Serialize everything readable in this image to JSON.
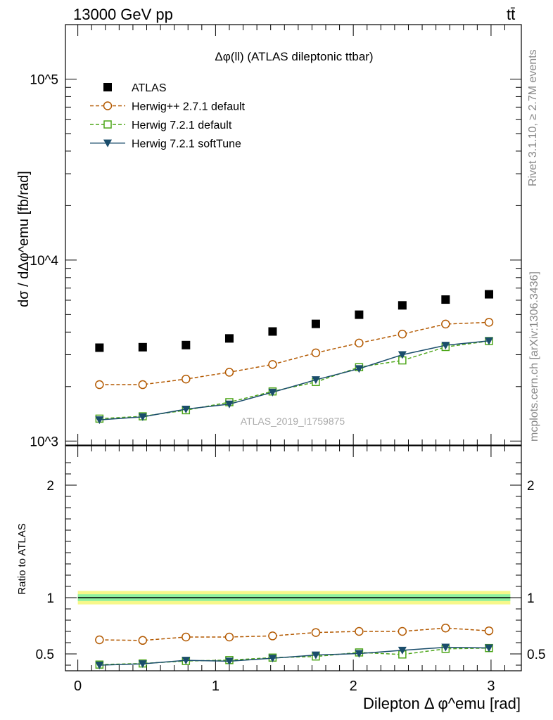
{
  "header": {
    "left": "13000 GeV pp",
    "right": "tt̄"
  },
  "side_labels": {
    "rivet": "Rivet 3.1.10, ≥ 2.7M events",
    "mcplots": "mcplots.cern.ch [arXiv:1306.3436]"
  },
  "chart_data": [
    {
      "type": "scatter",
      "panel": "main",
      "title": "Δφ(ll) (ATLAS dileptonic ttbar)",
      "ylabel": "dσ / dΔφ^emu [fb/rad]",
      "y_scale": "log",
      "ylim": [
        950,
        200000
      ],
      "xlim": [
        -0.09,
        3.22
      ],
      "x_ticks": [
        "0",
        "1",
        "2",
        "3"
      ],
      "y_ticks": [
        "10^3",
        "10^4",
        "10^5"
      ],
      "watermark": "ATLAS_2019_I1759875",
      "legend_position": "top-left",
      "x": [
        0.157,
        0.471,
        0.785,
        1.1,
        1.414,
        1.728,
        2.042,
        2.356,
        2.67,
        2.985
      ],
      "series": [
        {
          "name": "ATLAS",
          "color": "#000000",
          "marker": "filled-square",
          "line": "none",
          "values": [
            3280,
            3300,
            3390,
            3690,
            4030,
            4440,
            4990,
            5620,
            6050,
            6470
          ]
        },
        {
          "name": "Herwig++ 2.7.1 default",
          "color": "#b35900",
          "marker": "open-circle",
          "line": "dashed",
          "values": [
            2050,
            2050,
            2200,
            2400,
            2650,
            3070,
            3480,
            3900,
            4430,
            4530
          ]
        },
        {
          "name": "Herwig 7.2.1 default",
          "color": "#4da619",
          "marker": "open-square",
          "line": "dashed",
          "values": [
            1330,
            1370,
            1480,
            1640,
            1880,
            2120,
            2560,
            2790,
            3310,
            3570
          ]
        },
        {
          "name": "Herwig 7.2.1 softTune",
          "color": "#1a4d6b",
          "marker": "filled-triangle-down",
          "line": "solid",
          "values": [
            1310,
            1360,
            1500,
            1600,
            1860,
            2180,
            2510,
            3000,
            3380,
            3580
          ]
        }
      ]
    },
    {
      "type": "scatter",
      "panel": "ratio",
      "ylabel": "Ratio to ATLAS",
      "xlabel": "Dilepton Δ φ^emu [rad]",
      "ylim": [
        0.35,
        2.35
      ],
      "xlim": [
        -0.09,
        3.22
      ],
      "x_ticks": [
        "0",
        "1",
        "2",
        "3"
      ],
      "y_ticks": [
        "0.5",
        "1",
        "2"
      ],
      "band": {
        "inner": [
          0.97,
          1.03
        ],
        "outer": [
          0.94,
          1.06
        ]
      },
      "x": [
        0.157,
        0.471,
        0.785,
        1.1,
        1.414,
        1.728,
        2.042,
        2.356,
        2.67,
        2.985
      ],
      "series": [
        {
          "name": "Herwig++ 2.7.1 default",
          "color": "#b35900",
          "marker": "open-circle",
          "line": "dashed",
          "values": [
            0.625,
            0.62,
            0.65,
            0.65,
            0.66,
            0.69,
            0.7,
            0.7,
            0.73,
            0.705
          ]
        },
        {
          "name": "Herwig 7.2.1 default",
          "color": "#4da619",
          "marker": "open-square",
          "line": "dashed",
          "values": [
            0.405,
            0.415,
            0.437,
            0.445,
            0.467,
            0.477,
            0.513,
            0.495,
            0.545,
            0.552
          ]
        },
        {
          "name": "Herwig 7.2.1 softTune",
          "color": "#1a4d6b",
          "marker": "filled-triangle-down",
          "line": "solid",
          "values": [
            0.4,
            0.412,
            0.443,
            0.435,
            0.462,
            0.49,
            0.503,
            0.532,
            0.559,
            0.553
          ]
        }
      ]
    }
  ]
}
